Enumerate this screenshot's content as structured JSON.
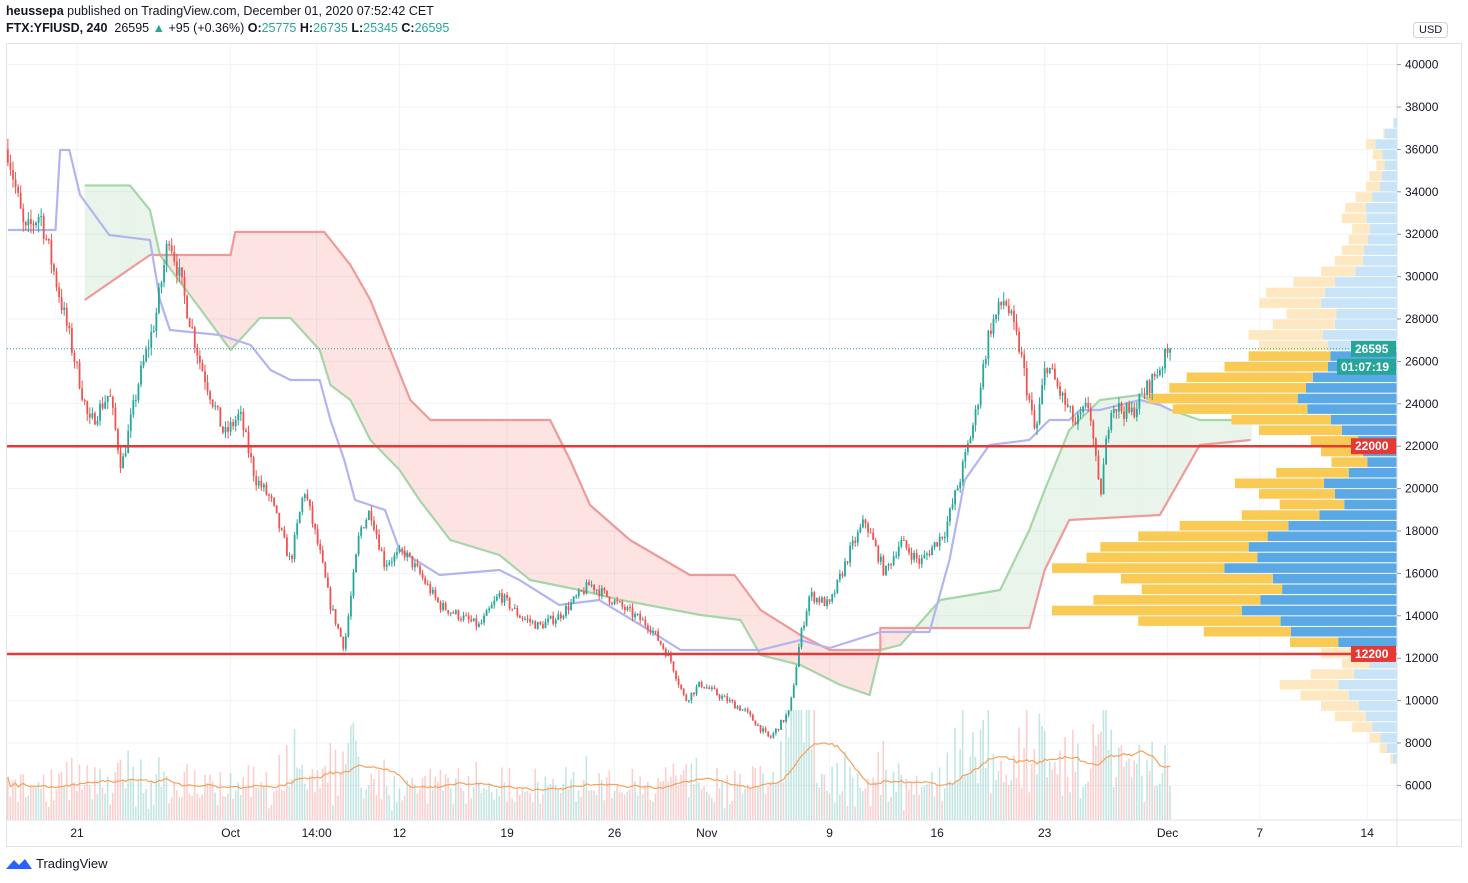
{
  "header": {
    "author": "heussepa",
    "published_text": "published on TradingView.com, December 01, 2020 07:52:42 CET",
    "symbol": "FTX:YFIUSD, 240",
    "last": "26595",
    "change": "+95 (+0.36%)",
    "o_label": "O:",
    "o": "25775",
    "h_label": "H:",
    "h": "26735",
    "l_label": "L:",
    "l": "25345",
    "c_label": "C:",
    "c": "26595"
  },
  "currency_button": "USD",
  "footer": {
    "brand": "TradingView"
  },
  "colors": {
    "up": "#26a69a",
    "down": "#ef5350",
    "level": "#e53935",
    "span_a": "#a5d6a7",
    "span_b": "#ef9a9a",
    "base": "#b4b4f0",
    "vol_ma": "#f7a05a",
    "vp_up": "#5aa9e6",
    "vp_down": "#f9cb55",
    "vp_up_light": "#c9e3f7",
    "vp_down_light": "#fde8c2"
  },
  "chart_data": {
    "type": "candlestick",
    "title": "FTX:YFIUSD, 240",
    "ylabel": "USD",
    "ylim": [
      5000,
      41000
    ],
    "y_ticks": [
      "40000",
      "38000",
      "36000",
      "34000",
      "32000",
      "30000",
      "28000",
      "26000",
      "24000",
      "22000",
      "20000",
      "18000",
      "16000",
      "14000",
      "12000",
      "10000",
      "8000",
      "6000"
    ],
    "y_tick_values": [
      40000,
      38000,
      36000,
      34000,
      32000,
      30000,
      28000,
      26000,
      24000,
      22000,
      20000,
      18000,
      16000,
      14000,
      12000,
      10000,
      8000,
      6000
    ],
    "x_unit": "days since Sep 21 2020",
    "x_ticks": [
      {
        "label": "21",
        "t": 0
      },
      {
        "label": "Oct",
        "t": 10
      },
      {
        "label": "14:00",
        "t": 15.6
      },
      {
        "label": "12",
        "t": 21
      },
      {
        "label": "19",
        "t": 28
      },
      {
        "label": "26",
        "t": 35
      },
      {
        "label": "Nov",
        "t": 41
      },
      {
        "label": "9",
        "t": 49
      },
      {
        "label": "16",
        "t": 56
      },
      {
        "label": "23",
        "t": 63
      },
      {
        "label": "Dec",
        "t": 71
      },
      {
        "label": "7",
        "t": 77
      },
      {
        "label": "14",
        "t": 84
      }
    ],
    "close_path": [
      [
        -4.5,
        36000
      ],
      [
        -3.4,
        32000
      ],
      [
        -2.4,
        33000
      ],
      [
        -1.1,
        29000
      ],
      [
        0.2,
        25000
      ],
      [
        0.8,
        23000
      ],
      [
        2.1,
        24500
      ],
      [
        2.9,
        21000
      ],
      [
        4.0,
        25000
      ],
      [
        5.1,
        28000
      ],
      [
        6.0,
        32000
      ],
      [
        7.0,
        29000
      ],
      [
        8.0,
        26000
      ],
      [
        8.9,
        24000
      ],
      [
        9.6,
        22500
      ],
      [
        10.6,
        23500
      ],
      [
        11.6,
        20500
      ],
      [
        12.6,
        19500
      ],
      [
        13.9,
        16500
      ],
      [
        14.8,
        20000
      ],
      [
        15.8,
        17000
      ],
      [
        16.5,
        14500
      ],
      [
        17.4,
        12500
      ],
      [
        18.4,
        18000
      ],
      [
        19.1,
        19000
      ],
      [
        20.0,
        16500
      ],
      [
        21.3,
        17000
      ],
      [
        22.3,
        16000
      ],
      [
        23.6,
        14500
      ],
      [
        24.9,
        14000
      ],
      [
        26.2,
        13500
      ],
      [
        27.5,
        15000
      ],
      [
        28.8,
        14000
      ],
      [
        30.1,
        13500
      ],
      [
        31.4,
        14000
      ],
      [
        33.4,
        15500
      ],
      [
        35.3,
        14500
      ],
      [
        37.3,
        13500
      ],
      [
        38.6,
        12000
      ],
      [
        39.6,
        10000
      ],
      [
        40.6,
        10800
      ],
      [
        41.9,
        10200
      ],
      [
        43.5,
        9500
      ],
      [
        45.1,
        8200
      ],
      [
        46.4,
        9500
      ],
      [
        47.1,
        13000
      ],
      [
        47.7,
        15000
      ],
      [
        49.0,
        14500
      ],
      [
        50.3,
        17000
      ],
      [
        51.3,
        18500
      ],
      [
        52.6,
        16000
      ],
      [
        53.6,
        17500
      ],
      [
        54.9,
        16500
      ],
      [
        56.5,
        18000
      ],
      [
        57.5,
        20500
      ],
      [
        58.5,
        23500
      ],
      [
        59.4,
        27500
      ],
      [
        60.4,
        29000
      ],
      [
        61.4,
        26500
      ],
      [
        62.4,
        22500
      ],
      [
        63.1,
        26000
      ],
      [
        64.0,
        24500
      ],
      [
        65.0,
        23000
      ],
      [
        65.9,
        24000
      ],
      [
        66.6,
        19500
      ],
      [
        67.3,
        24000
      ],
      [
        68.6,
        23500
      ],
      [
        69.9,
        25000
      ],
      [
        71.2,
        26595
      ]
    ],
    "ichimoku": {
      "base_line": [
        [
          -4.5,
          32198
        ],
        [
          -1.4,
          32198
        ],
        [
          -1.1,
          35972
        ],
        [
          -0.5,
          35972
        ],
        [
          0.2,
          33849
        ],
        [
          2.1,
          31962
        ],
        [
          4.75,
          31726
        ],
        [
          5.4,
          28896
        ],
        [
          6.05,
          27481
        ],
        [
          9.3,
          27245
        ],
        [
          11.3,
          26774
        ],
        [
          12.6,
          25594
        ],
        [
          13.9,
          25123
        ],
        [
          15.8,
          25123
        ],
        [
          16.5,
          23236
        ],
        [
          17.4,
          21349
        ],
        [
          18.1,
          19462
        ],
        [
          20.05,
          18991
        ],
        [
          21.0,
          17104
        ],
        [
          23.6,
          15925
        ],
        [
          27.5,
          16160
        ],
        [
          28.8,
          15689
        ],
        [
          31.4,
          14509
        ],
        [
          34.0,
          14745
        ],
        [
          36.7,
          13566
        ],
        [
          39.3,
          12387
        ],
        [
          44.5,
          12387
        ],
        [
          47.1,
          12858
        ],
        [
          49.0,
          12481
        ],
        [
          52.3,
          13236
        ],
        [
          55.5,
          13236
        ],
        [
          56.8,
          16632
        ],
        [
          57.8,
          20406
        ],
        [
          59.4,
          22057
        ],
        [
          62.0,
          22292
        ],
        [
          63.3,
          23236
        ],
        [
          64.6,
          23236
        ],
        [
          65.3,
          23708
        ],
        [
          66.6,
          23708
        ],
        [
          69.2,
          24179
        ],
        [
          70.5,
          23943
        ],
        [
          71.2,
          23708
        ]
      ],
      "span_a": [
        [
          0.5,
          34300
        ],
        [
          3.45,
          34300
        ],
        [
          4.75,
          33140
        ],
        [
          5.4,
          31019
        ],
        [
          8.0,
          28500
        ],
        [
          10.0,
          26540
        ],
        [
          11.9,
          28047
        ],
        [
          13.9,
          28047
        ],
        [
          15.8,
          26540
        ],
        [
          16.5,
          24887
        ],
        [
          17.8,
          24179
        ],
        [
          19.1,
          22292
        ],
        [
          21.0,
          20877
        ],
        [
          22.3,
          19462
        ],
        [
          24.3,
          17575
        ],
        [
          27.5,
          16868
        ],
        [
          29.5,
          15689
        ],
        [
          32.7,
          15217
        ],
        [
          35.4,
          14745
        ],
        [
          40.6,
          14038
        ],
        [
          43.2,
          13802
        ],
        [
          44.5,
          12151
        ],
        [
          47.1,
          11679
        ],
        [
          49.7,
          10736
        ],
        [
          51.6,
          10264
        ],
        [
          52.3,
          12387
        ],
        [
          53.6,
          12623
        ],
        [
          56.2,
          14745
        ],
        [
          60.1,
          15217
        ],
        [
          62.0,
          18047
        ],
        [
          63.0,
          19934
        ],
        [
          64.6,
          22764
        ],
        [
          66.6,
          24179
        ],
        [
          69.2,
          24415
        ],
        [
          71.2,
          23708
        ],
        [
          73.1,
          23236
        ],
        [
          76.4,
          23236
        ]
      ],
      "span_b": [
        [
          0.5,
          28896
        ],
        [
          4.75,
          31019
        ],
        [
          5.4,
          31019
        ],
        [
          10.0,
          31019
        ],
        [
          10.3,
          32104
        ],
        [
          16.1,
          32104
        ],
        [
          17.8,
          30547
        ],
        [
          19.1,
          28896
        ],
        [
          20.4,
          26538
        ],
        [
          21.7,
          24179
        ],
        [
          23.0,
          23236
        ],
        [
          30.8,
          23236
        ],
        [
          32.1,
          21349
        ],
        [
          33.4,
          19226
        ],
        [
          36.0,
          17575
        ],
        [
          39.9,
          15925
        ],
        [
          42.8,
          15925
        ],
        [
          44.5,
          14274
        ],
        [
          47.1,
          13094
        ],
        [
          49.0,
          12387
        ],
        [
          52.3,
          12387
        ],
        [
          52.3,
          13425
        ],
        [
          62.0,
          13425
        ],
        [
          63.0,
          16160
        ],
        [
          64.6,
          18519
        ],
        [
          70.5,
          18755
        ],
        [
          73.1,
          22057
        ],
        [
          76.4,
          22292
        ]
      ]
    },
    "horizontal_levels": [
      {
        "price": 22000,
        "label": "22000"
      },
      {
        "price": 12200,
        "label": "12200"
      }
    ],
    "last_price": {
      "value": 26595,
      "label": "26595",
      "countdown": "01:07:19"
    },
    "volume_profile": {
      "columns": [
        "price_low",
        "volume",
        "up_fraction"
      ],
      "bins": [
        [
          7000,
          2,
          0.6
        ],
        [
          7500,
          5,
          0.6
        ],
        [
          8000,
          8,
          0.6
        ],
        [
          8500,
          13,
          0.55
        ],
        [
          9000,
          18,
          0.5
        ],
        [
          9500,
          22,
          0.5
        ],
        [
          10000,
          28,
          0.5
        ],
        [
          10500,
          34,
          0.5
        ],
        [
          11000,
          25,
          0.5
        ],
        [
          11500,
          16,
          0.5
        ],
        [
          12000,
          22,
          0.5
        ],
        [
          12500,
          31,
          0.55
        ],
        [
          13000,
          56,
          0.55
        ],
        [
          13500,
          75,
          0.45
        ],
        [
          14000,
          100,
          0.45
        ],
        [
          14500,
          88,
          0.45
        ],
        [
          15000,
          74,
          0.45
        ],
        [
          15500,
          80,
          0.45
        ],
        [
          16000,
          100,
          0.5
        ],
        [
          16500,
          90,
          0.45
        ],
        [
          17000,
          86,
          0.5
        ],
        [
          17500,
          75,
          0.5
        ],
        [
          18000,
          63,
          0.5
        ],
        [
          18500,
          45,
          0.5
        ],
        [
          19000,
          34,
          0.45
        ],
        [
          19500,
          40,
          0.45
        ],
        [
          20000,
          47,
          0.45
        ],
        [
          20500,
          35,
          0.4
        ],
        [
          21000,
          19,
          0.45
        ],
        [
          21500,
          22,
          0.45
        ],
        [
          22000,
          25,
          0.45
        ],
        [
          22500,
          40,
          0.4
        ],
        [
          23000,
          48,
          0.4
        ],
        [
          23500,
          65,
          0.4
        ],
        [
          24000,
          72,
          0.4
        ],
        [
          24500,
          66,
          0.4
        ],
        [
          25000,
          61,
          0.4
        ],
        [
          25500,
          50,
          0.4
        ],
        [
          26000,
          43,
          0.45
        ],
        [
          26500,
          40,
          0.5
        ],
        [
          27000,
          43,
          0.5
        ],
        [
          27500,
          36,
          0.5
        ],
        [
          28000,
          32,
          0.55
        ],
        [
          28500,
          40,
          0.55
        ],
        [
          29000,
          38,
          0.55
        ],
        [
          29500,
          30,
          0.6
        ],
        [
          30000,
          22,
          0.55
        ],
        [
          30500,
          18,
          0.55
        ],
        [
          31000,
          16,
          0.6
        ],
        [
          31500,
          14,
          0.6
        ],
        [
          32000,
          13,
          0.6
        ],
        [
          32500,
          16,
          0.55
        ],
        [
          33000,
          15,
          0.6
        ],
        [
          33500,
          12,
          0.6
        ],
        [
          34000,
          9,
          0.55
        ],
        [
          34500,
          8,
          0.55
        ],
        [
          35000,
          6,
          0.6
        ],
        [
          35500,
          7,
          0.6
        ],
        [
          36000,
          9,
          0.7
        ],
        [
          36500,
          4,
          0.9
        ],
        [
          37000,
          1,
          1
        ]
      ],
      "value_area": [
        12500,
        26500
      ]
    }
  }
}
